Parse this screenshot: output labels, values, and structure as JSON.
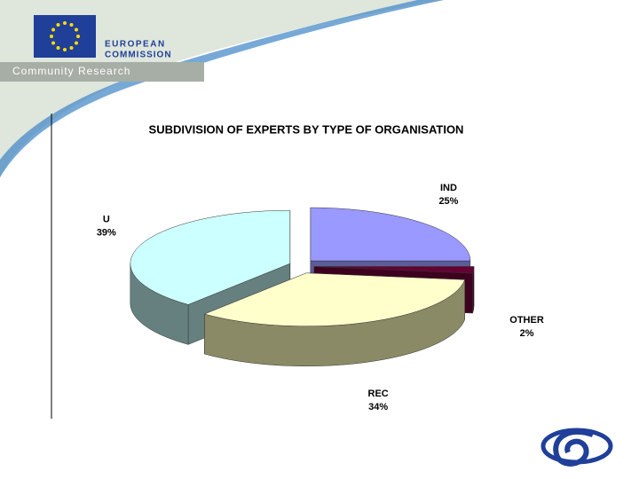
{
  "header": {
    "org": [
      "EUROPEAN",
      "COMMISSION"
    ],
    "subtitle": "Community Research"
  },
  "chart_data": {
    "type": "pie3d",
    "title": "SUBDIVISION OF EXPERTS BY TYPE OF ORGANISATION",
    "categories": [
      "IND",
      "OTHER",
      "REC",
      "U"
    ],
    "values": [
      25,
      2,
      34,
      39
    ],
    "value_labels": [
      "25%",
      "2%",
      "34%",
      "39%"
    ],
    "colors": [
      "#9999ff",
      "#660033",
      "#ffffcc",
      "#ccffff"
    ],
    "side_colors": [
      "#5c5c99",
      "#3d001f",
      "#8a8a66",
      "#668080"
    ]
  }
}
